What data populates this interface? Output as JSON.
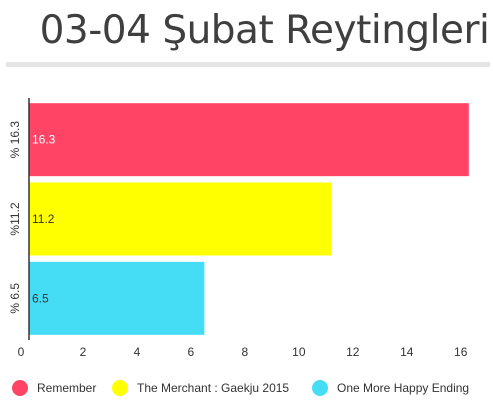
{
  "chart_data": {
    "type": "bar",
    "orientation": "horizontal",
    "title": "03-04 Şubat Reytingleri",
    "categories": [
      "% 16.3",
      "%11.2",
      "% 6.5"
    ],
    "series": [
      {
        "name": "Remember",
        "values": [
          16.3,
          null,
          null
        ],
        "color": "#ff4466",
        "data_label": "16.3"
      },
      {
        "name": "The Merchant : Gaekju 2015",
        "values": [
          null,
          11.2,
          null
        ],
        "color": "#ffff00",
        "data_label": "11.2"
      },
      {
        "name": "One More Happy Ending",
        "values": [
          null,
          null,
          6.5
        ],
        "color": "#44ddf5",
        "data_label": "6.5"
      }
    ],
    "xlim": [
      0,
      16.9
    ],
    "xticks": [
      "0",
      "2",
      "4",
      "6",
      "8",
      "10",
      "12",
      "14",
      "16"
    ],
    "xlabel": "",
    "ylabel": "",
    "grid": false,
    "legend_position": "bottom"
  }
}
